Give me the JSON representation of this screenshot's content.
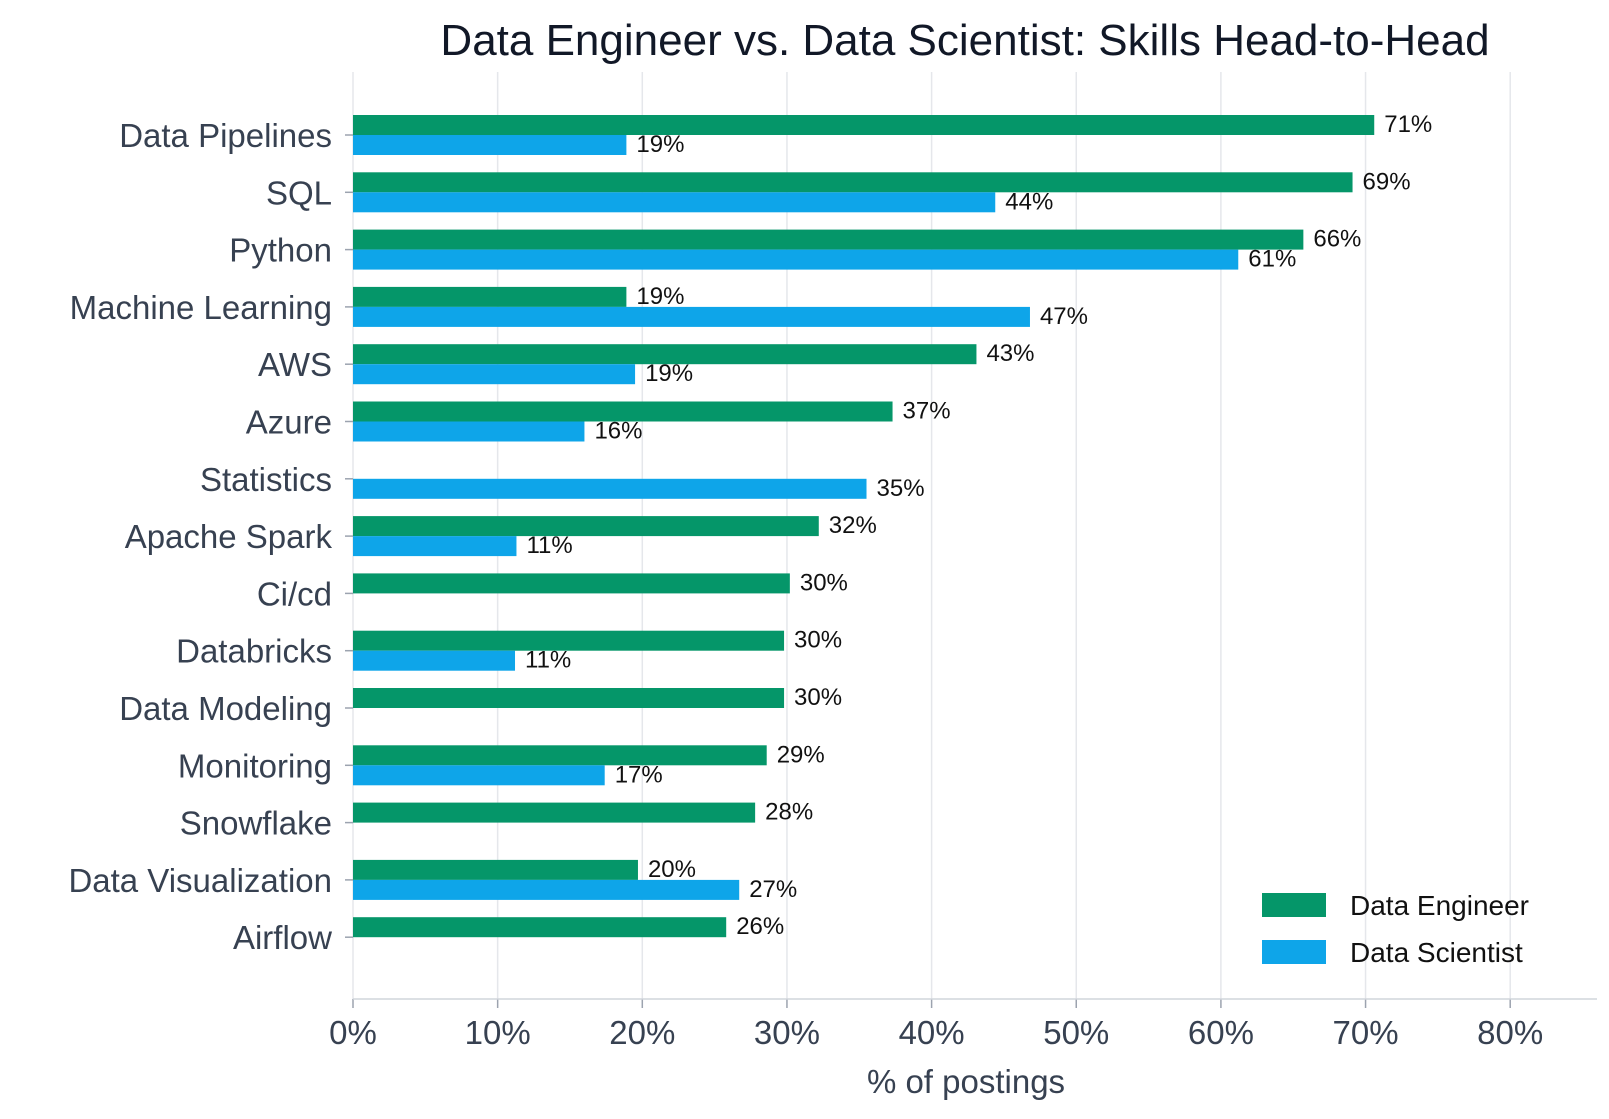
{
  "chart_data": {
    "type": "bar",
    "orientation": "horizontal",
    "title": "Data Engineer vs. Data Scientist: Skills Head-to-Head",
    "xlabel": "% of postings",
    "ylabel": "",
    "xlim": [
      0,
      86
    ],
    "x_ticks": [
      0,
      10,
      20,
      30,
      40,
      50,
      60,
      70,
      80
    ],
    "x_tick_labels": [
      "0%",
      "10%",
      "20%",
      "30%",
      "40%",
      "50%",
      "60%",
      "70%",
      "80%"
    ],
    "grid": "vertical",
    "legend_position": "bottom-right",
    "categories": [
      "Data Pipelines",
      "SQL",
      "Python",
      "Machine Learning",
      "AWS",
      "Azure",
      "Statistics",
      "Apache Spark",
      "Ci/cd",
      "Databricks",
      "Data Modeling",
      "Monitoring",
      "Snowflake",
      "Data Visualization",
      "Airflow"
    ],
    "series": [
      {
        "name": "Data Engineer",
        "color": "#059669",
        "values": [
          70.6,
          69.1,
          65.7,
          18.9,
          43.1,
          37.3,
          null,
          32.2,
          30.2,
          29.8,
          29.8,
          28.6,
          27.8,
          19.7,
          25.8
        ],
        "labels": [
          "71%",
          "69%",
          "66%",
          "19%",
          "43%",
          "37%",
          "",
          "32%",
          "30%",
          "30%",
          "30%",
          "29%",
          "28%",
          "20%",
          "26%"
        ]
      },
      {
        "name": "Data Scientist",
        "color": "#0ea5e9",
        "values": [
          18.9,
          44.4,
          61.2,
          46.8,
          19.5,
          16.0,
          35.5,
          11.3,
          null,
          11.2,
          null,
          17.4,
          null,
          26.7,
          null
        ],
        "labels": [
          "19%",
          "44%",
          "61%",
          "47%",
          "19%",
          "16%",
          "35%",
          "11%",
          "",
          "11%",
          "",
          "17%",
          "",
          "27%",
          ""
        ]
      }
    ]
  }
}
